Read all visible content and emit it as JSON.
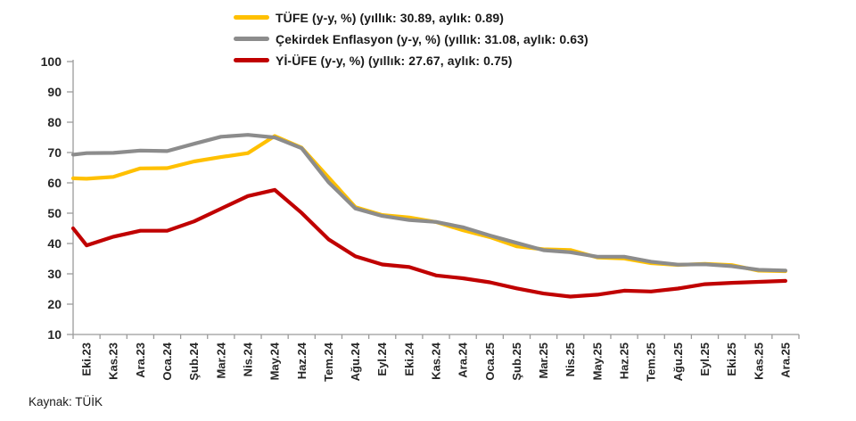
{
  "legend": {
    "items": [
      {
        "label": "TÜFE (y-y, %) (yıllık: 30.89, aylık: 0.89)",
        "color": "#FFC000"
      },
      {
        "label": "Çekirdek Enflasyon (y-y, %) (yıllık: 31.08, aylık: 0.63)",
        "color": "#8C8C8C"
      },
      {
        "label": "Yİ-ÜFE (y-y, %) (yıllık: 27.67, aylık: 0.75)",
        "color": "#C00000"
      }
    ]
  },
  "source_note": "Kaynak: TÜİK",
  "chart_data": {
    "type": "line",
    "title": "",
    "xlabel": "",
    "ylabel": "",
    "ylim": [
      10,
      100
    ],
    "y_ticks": [
      100,
      90,
      80,
      70,
      60,
      50,
      40,
      30,
      20,
      10
    ],
    "grid": false,
    "legend_position": "top-center",
    "x_label_rotation": -90,
    "categories": [
      "Eki.23",
      "Kas.23",
      "Ara.23",
      "Oca.24",
      "Şub.24",
      "Mar.24",
      "Nis.24",
      "May.24",
      "Haz.24",
      "Tem.24",
      "Ağu.24",
      "Eyl.24",
      "Eki.24",
      "Kas.24",
      "Ara.24",
      "Oca.25",
      "Şub.25",
      "Mar.25",
      "Nis.25",
      "May.25",
      "Haz.25",
      "Tem.25",
      "Ağu.25",
      "Eyl.25",
      "Eki.25",
      "Kas.25",
      "Ara.25"
    ],
    "series": [
      {
        "name": "TÜFE (y-y, %)",
        "annual": 30.89,
        "monthly": 0.89,
        "color": "#FFC000",
        "axis_edge_start": 61.5,
        "values": [
          61.36,
          61.98,
          64.77,
          64.86,
          67.07,
          68.5,
          69.8,
          75.45,
          71.6,
          61.78,
          51.97,
          49.38,
          48.58,
          47.09,
          44.38,
          42.12,
          39.05,
          38.1,
          37.86,
          35.41,
          35.05,
          33.52,
          32.95,
          33.29,
          32.87,
          31.07,
          30.89
        ]
      },
      {
        "name": "Çekirdek Enflasyon (y-y, %)",
        "annual": 31.08,
        "monthly": 0.63,
        "color": "#8C8C8C",
        "axis_edge_start": 69.3,
        "values": [
          69.8,
          69.89,
          70.64,
          70.48,
          72.89,
          75.21,
          75.81,
          74.98,
          71.41,
          60.23,
          51.56,
          49.1,
          47.75,
          47.13,
          45.34,
          42.65,
          40.21,
          37.78,
          37.12,
          35.64,
          35.64,
          34.01,
          33.03,
          33.14,
          32.52,
          31.31,
          31.08
        ]
      },
      {
        "name": "Yİ-ÜFE (y-y, %)",
        "annual": 27.67,
        "monthly": 0.75,
        "color": "#C00000",
        "axis_edge_start": 45.0,
        "values": [
          39.39,
          42.25,
          44.22,
          44.2,
          47.29,
          51.47,
          55.66,
          57.68,
          50.09,
          41.37,
          35.75,
          33.09,
          32.24,
          29.47,
          28.52,
          27.2,
          25.21,
          23.5,
          22.5,
          23.13,
          24.45,
          24.19,
          25.16,
          26.59,
          27.02,
          27.35,
          27.67
        ]
      }
    ]
  }
}
